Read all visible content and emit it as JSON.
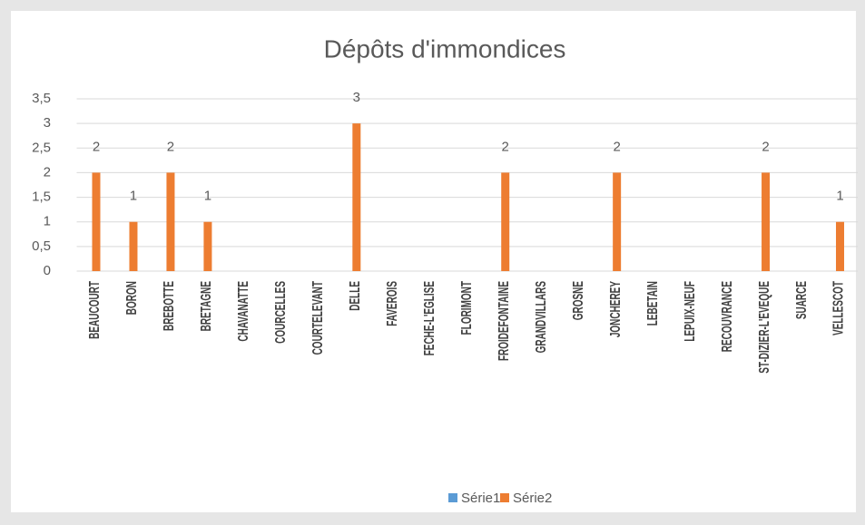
{
  "chart_data": {
    "type": "bar",
    "title": "Dépôts d'immondices",
    "categories": [
      "BEAUCOURT",
      "BORON",
      "BREBOTTE",
      "BRETAGNE",
      "CHAVANATTE",
      "COURCELLES",
      "COURTELEVANT",
      "DELLE",
      "FAVEROIS",
      "FECHE-L'EGLISE",
      "FLORIMONT",
      "FROIDEFONTAINE",
      "GRANDVILLARS",
      "GROSNE",
      "JONCHEREY",
      "LEBETAIN",
      "LEPUIX-NEUF",
      "RECOUVRANCE",
      "ST-DIZIER-L'EVEQUE",
      "SUARCE",
      "VELLESCOT"
    ],
    "series": [
      {
        "name": "Série1",
        "color": "#5b9bd5",
        "values": [
          null,
          null,
          null,
          null,
          null,
          null,
          null,
          null,
          null,
          null,
          null,
          null,
          null,
          null,
          null,
          null,
          null,
          null,
          null,
          null,
          null
        ]
      },
      {
        "name": "Série2",
        "color": "#ed7d31",
        "values": [
          2,
          1,
          2,
          1,
          null,
          null,
          null,
          3,
          null,
          null,
          null,
          2,
          null,
          null,
          2,
          null,
          null,
          null,
          2,
          null,
          1
        ]
      }
    ],
    "ylim": [
      0,
      3.5
    ],
    "yticks": [
      0,
      {
        "value": 0.5,
        "label": "0,5"
      },
      1,
      {
        "value": 1.5,
        "label": "1,5"
      },
      2,
      {
        "value": 2.5,
        "label": "2,5"
      },
      3,
      {
        "value": 3.5,
        "label": "3,5"
      }
    ],
    "grid": true,
    "legend": "bottom"
  }
}
